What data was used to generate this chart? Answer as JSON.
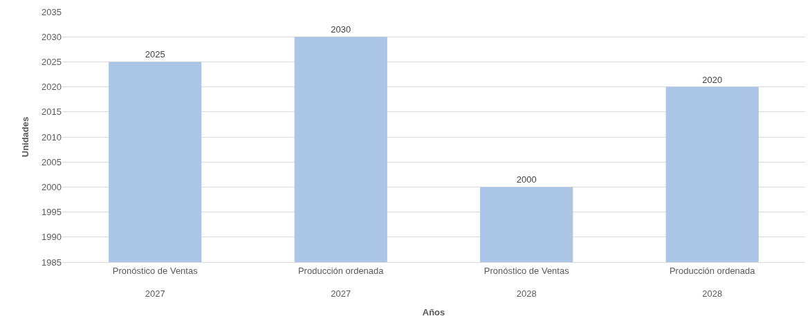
{
  "chart_data": {
    "type": "bar",
    "xlabel": "Años",
    "ylabel": "Unidades",
    "categories": [
      "Pronóstico de Ventas\n2027",
      "Producción ordenada\n2027",
      "Pronóstico de Ventas\n2028",
      "Producción ordenada\n2028"
    ],
    "values": [
      2025,
      2030,
      2000,
      2020
    ],
    "color": "#abc5e6",
    "ylim": [
      1985,
      2035
    ],
    "yticks": [
      1985,
      1990,
      1995,
      2000,
      2005,
      2010,
      2015,
      2020,
      2025,
      2030,
      2035
    ],
    "grid": "y",
    "data_labels": true
  }
}
